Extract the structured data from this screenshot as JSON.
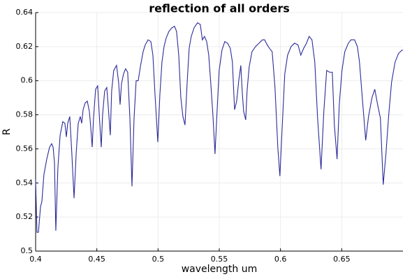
{
  "chart_data": {
    "type": "line",
    "title": "reflection of all orders",
    "x_label": "wavelength um",
    "y_label": "R",
    "xlim": [
      0.4,
      0.7
    ],
    "ylim": [
      0.5,
      0.64
    ],
    "xticks": [
      0.4,
      0.45,
      0.5,
      0.55,
      0.6,
      0.65
    ],
    "yticks": [
      0.5,
      0.52,
      0.54,
      0.56,
      0.58,
      0.6,
      0.62,
      0.64
    ],
    "grid": true,
    "series": [
      {
        "name": "R",
        "color": "#2b2b9a",
        "x": [
          0.4,
          0.4011,
          0.4023,
          0.404,
          0.4051,
          0.4068,
          0.4091,
          0.4114,
          0.4131,
          0.4143,
          0.4154,
          0.4165,
          0.4182,
          0.42,
          0.4222,
          0.4239,
          0.4251,
          0.4262,
          0.4279,
          0.4296,
          0.4314,
          0.4331,
          0.4348,
          0.4365,
          0.4376,
          0.4388,
          0.4405,
          0.4422,
          0.4439,
          0.445,
          0.4462,
          0.4473,
          0.449,
          0.4507,
          0.4519,
          0.4536,
          0.4547,
          0.4564,
          0.4581,
          0.4593,
          0.461,
          0.4621,
          0.4638,
          0.4661,
          0.4678,
          0.469,
          0.4701,
          0.4718,
          0.4735,
          0.4752,
          0.477,
          0.4787,
          0.4804,
          0.4821,
          0.4838,
          0.4855,
          0.4878,
          0.4895,
          0.4918,
          0.4941,
          0.4958,
          0.4975,
          0.4998,
          0.5015,
          0.5032,
          0.5049,
          0.5066,
          0.5089,
          0.5112,
          0.5134,
          0.5151,
          0.5169,
          0.5186,
          0.5203,
          0.522,
          0.5237,
          0.5254,
          0.5271,
          0.5294,
          0.5322,
          0.5345,
          0.5362,
          0.5379,
          0.5397,
          0.5414,
          0.5431,
          0.5448,
          0.5465,
          0.5482,
          0.5499,
          0.5522,
          0.5545,
          0.5568,
          0.559,
          0.5607,
          0.5625,
          0.5642,
          0.5659,
          0.5676,
          0.5687,
          0.5699,
          0.5716,
          0.5727,
          0.5744,
          0.5767,
          0.5796,
          0.5824,
          0.5853,
          0.587,
          0.5892,
          0.591,
          0.5932,
          0.5955,
          0.5978,
          0.5995,
          0.6012,
          0.6035,
          0.6058,
          0.6086,
          0.6115,
          0.6143,
          0.6166,
          0.6189,
          0.6212,
          0.6234,
          0.6257,
          0.628,
          0.6303,
          0.6331,
          0.6354,
          0.6377,
          0.64,
          0.6423,
          0.644,
          0.6462,
          0.648,
          0.6502,
          0.6525,
          0.6554,
          0.6576,
          0.6605,
          0.6628,
          0.6645,
          0.6668,
          0.6696,
          0.6719,
          0.6747,
          0.677,
          0.6793,
          0.6816,
          0.6839,
          0.6861,
          0.6884,
          0.6907,
          0.6936,
          0.6964,
          0.6993,
          0.7
        ],
        "values": [
          0.542,
          0.511,
          0.511,
          0.526,
          0.529,
          0.545,
          0.554,
          0.561,
          0.563,
          0.561,
          0.552,
          0.512,
          0.549,
          0.568,
          0.576,
          0.575,
          0.567,
          0.575,
          0.579,
          0.557,
          0.531,
          0.557,
          0.575,
          0.579,
          0.575,
          0.583,
          0.587,
          0.588,
          0.582,
          0.573,
          0.561,
          0.578,
          0.595,
          0.597,
          0.581,
          0.561,
          0.58,
          0.594,
          0.596,
          0.585,
          0.568,
          0.594,
          0.606,
          0.609,
          0.599,
          0.586,
          0.598,
          0.604,
          0.607,
          0.605,
          0.578,
          0.538,
          0.578,
          0.6,
          0.6,
          0.608,
          0.617,
          0.621,
          0.624,
          0.623,
          0.615,
          0.592,
          0.564,
          0.592,
          0.611,
          0.62,
          0.625,
          0.629,
          0.631,
          0.632,
          0.629,
          0.615,
          0.59,
          0.579,
          0.574,
          0.598,
          0.619,
          0.626,
          0.631,
          0.634,
          0.633,
          0.624,
          0.626,
          0.623,
          0.615,
          0.598,
          0.58,
          0.557,
          0.582,
          0.606,
          0.618,
          0.623,
          0.622,
          0.619,
          0.611,
          0.583,
          0.588,
          0.6,
          0.609,
          0.594,
          0.582,
          0.577,
          0.594,
          0.608,
          0.617,
          0.62,
          0.622,
          0.624,
          0.624,
          0.621,
          0.619,
          0.617,
          0.596,
          0.561,
          0.544,
          0.57,
          0.604,
          0.615,
          0.62,
          0.622,
          0.621,
          0.615,
          0.619,
          0.622,
          0.626,
          0.624,
          0.611,
          0.578,
          0.548,
          0.582,
          0.606,
          0.605,
          0.605,
          0.574,
          0.554,
          0.586,
          0.606,
          0.617,
          0.622,
          0.624,
          0.624,
          0.62,
          0.611,
          0.59,
          0.565,
          0.579,
          0.59,
          0.595,
          0.586,
          0.578,
          0.539,
          0.557,
          0.58,
          0.599,
          0.611,
          0.616,
          0.618,
          0.618
        ]
      }
    ]
  }
}
